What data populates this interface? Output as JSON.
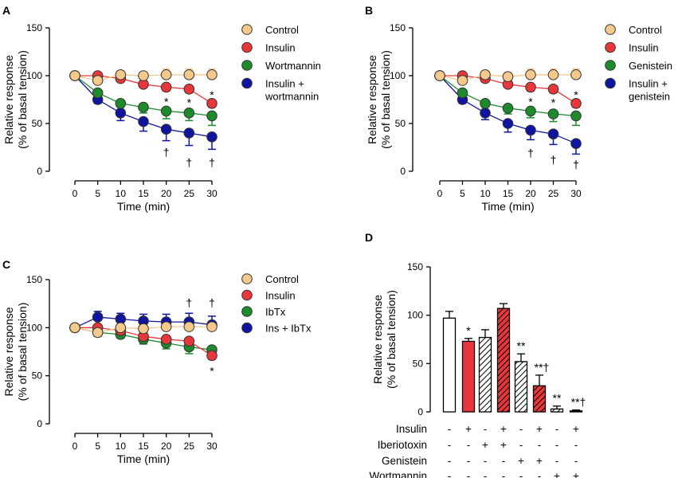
{
  "chart_data": [
    {
      "panel": "A",
      "type": "line",
      "ylabel": [
        "Relative response",
        "(% of basal tension)"
      ],
      "xlabel": "Time (min)",
      "x": [
        0,
        5,
        10,
        15,
        20,
        25,
        30
      ],
      "xticks": [
        "0",
        "5",
        "10",
        "15",
        "20",
        "25",
        "30"
      ],
      "yticks": [
        "0",
        "50",
        "100",
        "150"
      ],
      "ylim": [
        0,
        150
      ],
      "series": [
        {
          "name": "Control",
          "color": "#f5c88c",
          "values": [
            100,
            95,
            101,
            100,
            101,
            101,
            101
          ],
          "err": [
            0,
            4,
            4,
            4,
            6,
            6,
            6
          ]
        },
        {
          "name": "Insulin",
          "color": "#e8373b",
          "values": [
            100,
            100,
            97,
            91,
            88,
            86,
            71
          ],
          "err": [
            0,
            3,
            3,
            3,
            4,
            4,
            4
          ]
        },
        {
          "name": "Wortmannin",
          "color": "#1d8a2c",
          "values": [
            100,
            82,
            71,
            67,
            63,
            61,
            58
          ],
          "err": [
            0,
            4,
            4,
            6,
            8,
            8,
            10
          ]
        },
        {
          "name": "Insulin + wortmannin",
          "color": "#10159f",
          "values": [
            100,
            75,
            61,
            52,
            44,
            40,
            36
          ],
          "err": [
            0,
            4,
            8,
            10,
            12,
            13,
            13
          ]
        }
      ],
      "legend": [
        "Control",
        "Insulin",
        "Wortmannin",
        "Insulin +",
        "wortmannin"
      ],
      "annotations": [
        {
          "text": "*",
          "x": 20,
          "y": 73
        },
        {
          "text": "*",
          "x": 25,
          "y": 72
        },
        {
          "text": "*",
          "x": 30,
          "y": 80
        },
        {
          "text": "†",
          "x": 20,
          "y": 20
        },
        {
          "text": "†",
          "x": 25,
          "y": 9
        },
        {
          "text": "†",
          "x": 30,
          "y": 9
        }
      ]
    },
    {
      "panel": "B",
      "type": "line",
      "ylabel": [
        "Relative response",
        "(% of basal tension)"
      ],
      "xlabel": "Time (min)",
      "x": [
        0,
        5,
        10,
        15,
        20,
        25,
        30
      ],
      "xticks": [
        "0",
        "5",
        "10",
        "15",
        "20",
        "25",
        "30"
      ],
      "yticks": [
        "0",
        "50",
        "100",
        "150"
      ],
      "ylim": [
        0,
        150
      ],
      "series": [
        {
          "name": "Control",
          "color": "#f5c88c",
          "values": [
            100,
            95,
            101,
            99,
            101,
            101,
            101
          ],
          "err": [
            0,
            4,
            4,
            4,
            6,
            6,
            6
          ]
        },
        {
          "name": "Insulin",
          "color": "#e8373b",
          "values": [
            100,
            100,
            97,
            91,
            88,
            86,
            71
          ],
          "err": [
            0,
            3,
            3,
            3,
            4,
            4,
            4
          ]
        },
        {
          "name": "Genistein",
          "color": "#1d8a2c",
          "values": [
            100,
            82,
            71,
            66,
            63,
            60,
            58
          ],
          "err": [
            0,
            4,
            4,
            6,
            7,
            8,
            10
          ]
        },
        {
          "name": "Insulin + genistein",
          "color": "#10159f",
          "values": [
            100,
            75,
            61,
            50,
            43,
            39,
            29
          ],
          "err": [
            0,
            4,
            7,
            9,
            10,
            11,
            11
          ]
        }
      ],
      "legend": [
        "Control",
        "Insulin",
        "Genistein",
        "Insulin +",
        "genistein"
      ],
      "annotations": [
        {
          "text": "*",
          "x": 20,
          "y": 73
        },
        {
          "text": "*",
          "x": 25,
          "y": 72
        },
        {
          "text": "*",
          "x": 30,
          "y": 80
        },
        {
          "text": "†",
          "x": 20,
          "y": 19
        },
        {
          "text": "†",
          "x": 25,
          "y": 12
        },
        {
          "text": "†",
          "x": 30,
          "y": 7
        }
      ]
    },
    {
      "panel": "C",
      "type": "line",
      "ylabel": [
        "Relative response",
        "(% of basal tension)"
      ],
      "xlabel": "Time (min)",
      "x": [
        0,
        5,
        10,
        15,
        20,
        25,
        30
      ],
      "xticks": [
        "0",
        "5",
        "10",
        "15",
        "20",
        "25",
        "30"
      ],
      "yticks": [
        "0",
        "50",
        "100",
        "150"
      ],
      "ylim": [
        0,
        150
      ],
      "series": [
        {
          "name": "Control",
          "color": "#f5c88c",
          "values": [
            100,
            95,
            100,
            99,
            101,
            101,
            101
          ],
          "err": [
            0,
            4,
            4,
            4,
            6,
            6,
            6
          ]
        },
        {
          "name": "Insulin",
          "color": "#e8373b",
          "values": [
            100,
            100,
            97,
            91,
            88,
            86,
            71
          ],
          "err": [
            0,
            3,
            3,
            3,
            4,
            4,
            4
          ]
        },
        {
          "name": "IbTx",
          "color": "#1d8a2c",
          "values": [
            100,
            95,
            93,
            88,
            84,
            80,
            77
          ],
          "err": [
            0,
            4,
            4,
            5,
            6,
            7,
            6
          ]
        },
        {
          "name": "Ins + IbTx",
          "color": "#10159f",
          "values": [
            100,
            111,
            109,
            107,
            106,
            106,
            103
          ],
          "err": [
            0,
            6,
            6,
            7,
            8,
            9,
            9
          ]
        }
      ],
      "legend": [
        "Control",
        "Insulin",
        "IbTx",
        "Ins + IbTx"
      ],
      "annotations": [
        {
          "text": "†",
          "x": 25,
          "y": 126
        },
        {
          "text": "†",
          "x": 30,
          "y": 126
        },
        {
          "text": "*",
          "x": 30,
          "y": 55
        }
      ]
    },
    {
      "panel": "D",
      "type": "bar",
      "ylabel": [
        "Relative response",
        "(% of basal tension)"
      ],
      "yticks": [
        "0",
        "50",
        "100",
        "150"
      ],
      "ylim": [
        0,
        150
      ],
      "bars": [
        {
          "value": 97,
          "err": 7,
          "fill": "white",
          "sig": ""
        },
        {
          "value": 73,
          "err": 3,
          "fill": "red",
          "sig": "*"
        },
        {
          "value": 77,
          "err": 8,
          "fill": "white-hatch",
          "sig": ""
        },
        {
          "value": 107,
          "err": 5,
          "fill": "red-hatch",
          "sig": ""
        },
        {
          "value": 52,
          "err": 8,
          "fill": "white-hatch",
          "sig": "**"
        },
        {
          "value": 27,
          "err": 11,
          "fill": "red-hatch",
          "sig": "**†"
        },
        {
          "value": 3,
          "err": 3,
          "fill": "white-hatch",
          "sig": "**"
        },
        {
          "value": 1,
          "err": 1,
          "fill": "red-hatch",
          "sig": "**†"
        }
      ],
      "table": {
        "rows": [
          {
            "label": "Insulin",
            "values": [
              "-",
              "+",
              "-",
              "+",
              "-",
              "+",
              "-",
              "+"
            ]
          },
          {
            "label": "Iberiotoxin",
            "values": [
              "-",
              "-",
              "+",
              "+",
              "-",
              "-",
              "-",
              "-"
            ]
          },
          {
            "label": "Genistein",
            "values": [
              "-",
              "-",
              "-",
              "-",
              "+",
              "+",
              "-",
              "-"
            ]
          },
          {
            "label": "Wortmannin",
            "values": [
              "-",
              "-",
              "-",
              "-",
              "-",
              "-",
              "+",
              "+"
            ]
          }
        ]
      }
    }
  ]
}
